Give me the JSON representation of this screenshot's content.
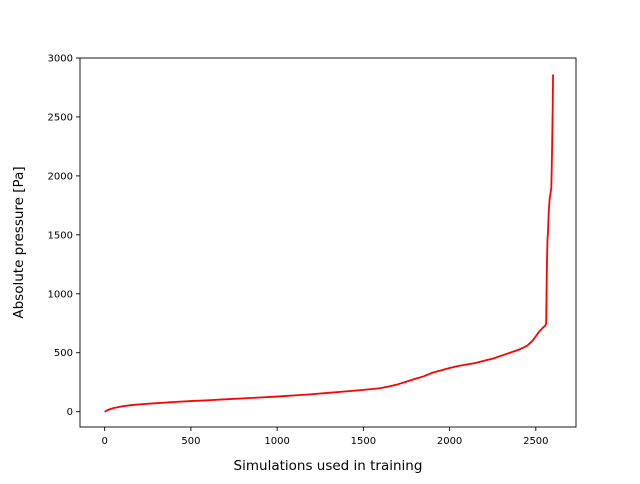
{
  "chart_data": {
    "type": "line",
    "title": "",
    "xlabel": "Simulations used in training",
    "ylabel": "Absolute pressure [Pa]",
    "xlim": [
      -143,
      2733
    ],
    "ylim": [
      -130,
      3000
    ],
    "xticks": [
      0,
      500,
      1000,
      1500,
      2000,
      2500
    ],
    "yticks": [
      0,
      500,
      1000,
      1500,
      2000,
      2500,
      3000
    ],
    "grid": false,
    "legend": "none",
    "series": [
      {
        "color": "#ff0000",
        "x": [
          0,
          20,
          50,
          100,
          150,
          200,
          300,
          400,
          500,
          600,
          700,
          800,
          900,
          1000,
          1100,
          1200,
          1300,
          1400,
          1500,
          1600,
          1650,
          1700,
          1750,
          1800,
          1850,
          1900,
          1950,
          2000,
          2050,
          2100,
          2150,
          2200,
          2250,
          2300,
          2350,
          2400,
          2450,
          2480,
          2500,
          2520,
          2540,
          2555,
          2560,
          2562,
          2565,
          2568,
          2570,
          2575,
          2580,
          2585,
          2590,
          2594,
          2598,
          2600
        ],
        "y": [
          0,
          15,
          30,
          45,
          55,
          62,
          72,
          82,
          90,
          97,
          105,
          113,
          120,
          128,
          138,
          148,
          160,
          172,
          185,
          200,
          215,
          232,
          255,
          278,
          300,
          330,
          350,
          370,
          387,
          400,
          413,
          432,
          450,
          475,
          500,
          525,
          560,
          600,
          640,
          680,
          710,
          730,
          750,
          1000,
          1300,
          1480,
          1500,
          1700,
          1800,
          1850,
          1900,
          2200,
          2600,
          2860
        ]
      }
    ]
  }
}
